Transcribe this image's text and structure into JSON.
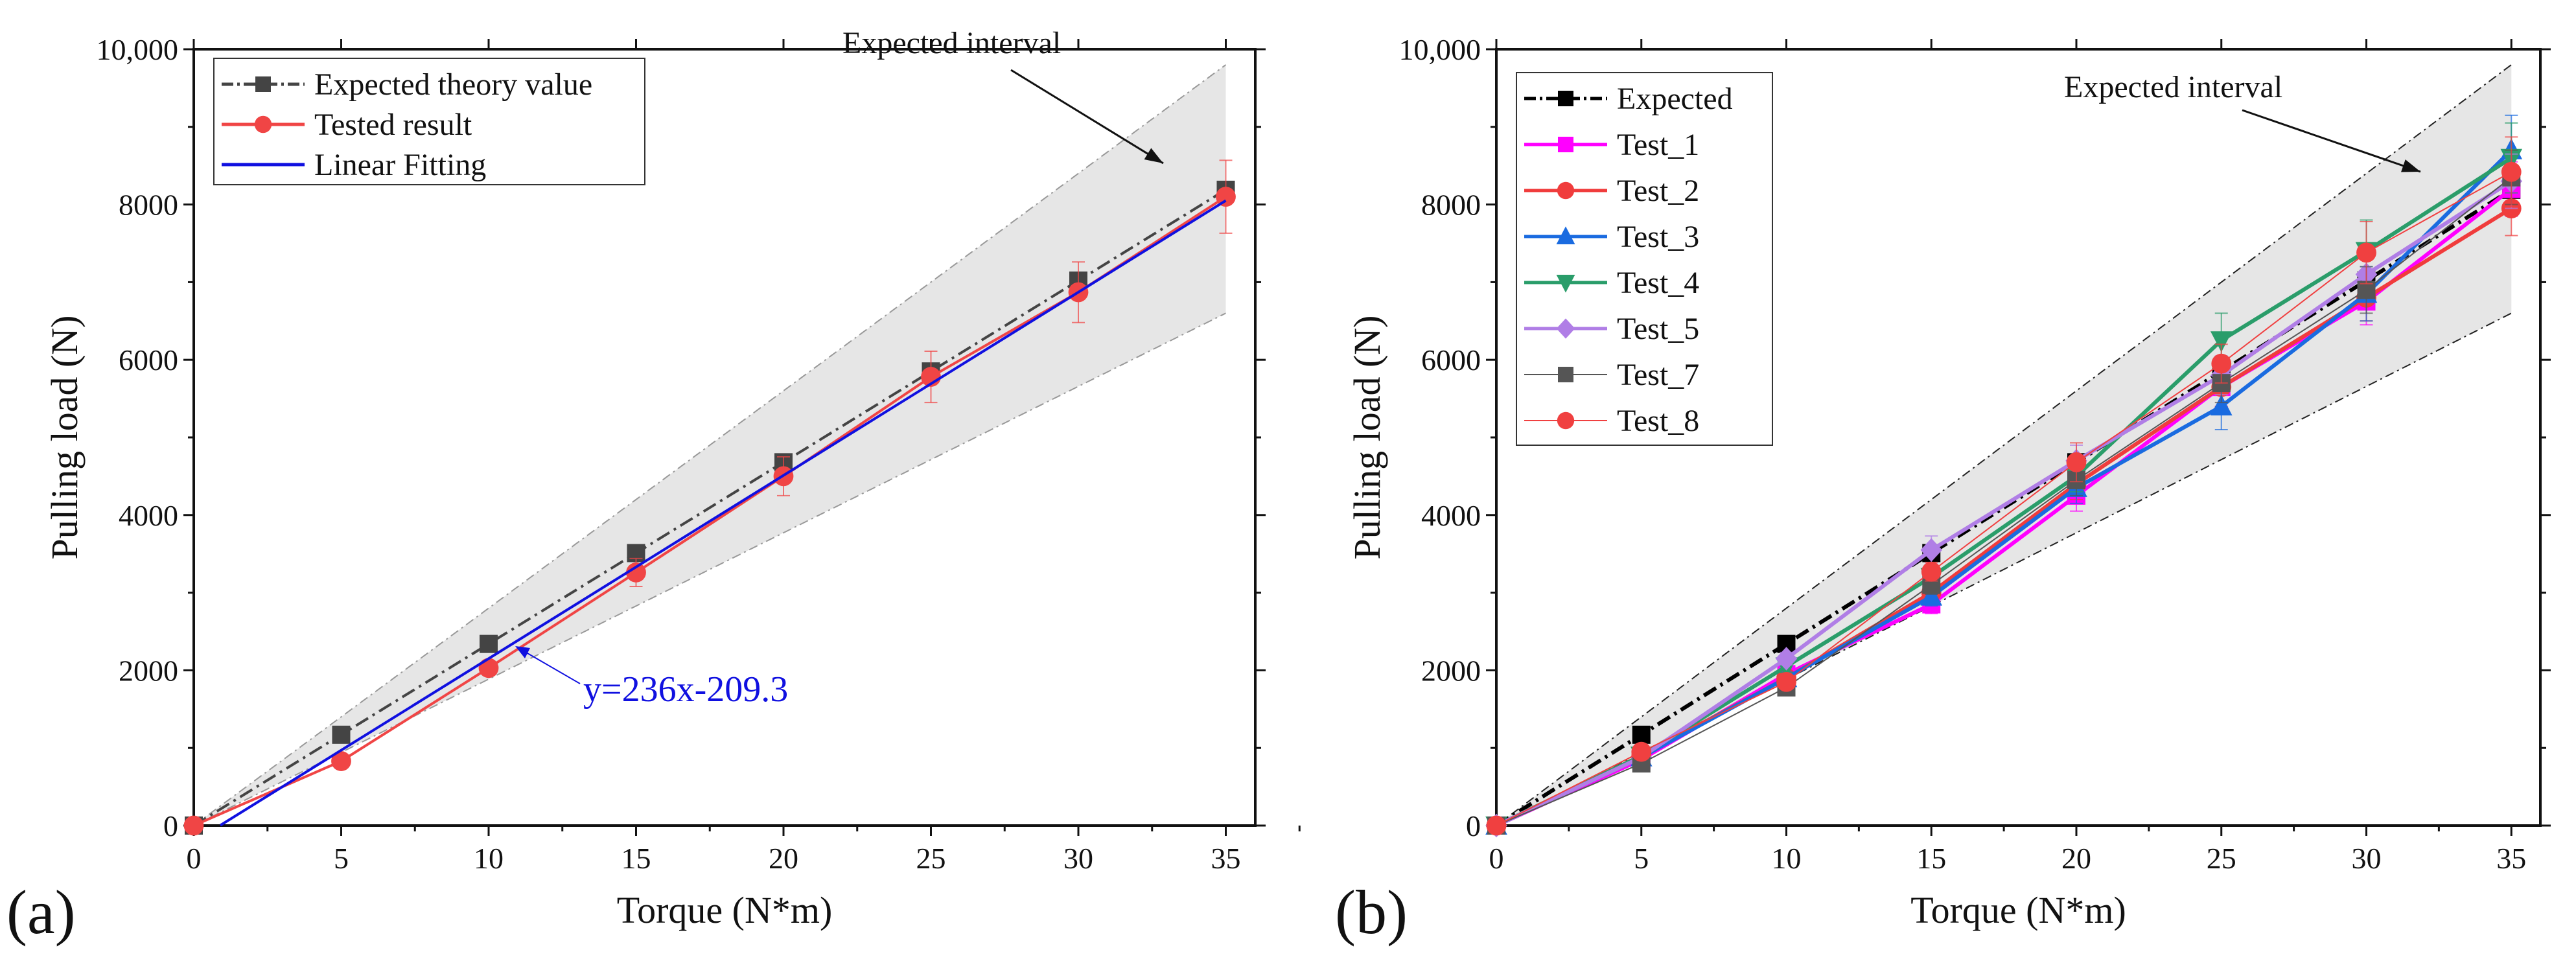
{
  "chart_data": [
    {
      "type": "line",
      "panel_label": "(a)",
      "xlabel": "Torque (N*m)",
      "ylabel": "Pulling load (N)",
      "xlim": [
        0,
        36
      ],
      "ylim": [
        0,
        10000
      ],
      "xticks": [
        "0",
        "5",
        "10",
        "15",
        "20",
        "25",
        "30",
        "35"
      ],
      "yticks": [
        "0",
        "2000",
        "4000",
        "6000",
        "8000",
        "10,000"
      ],
      "x": [
        0,
        5,
        10,
        15,
        20,
        25,
        30,
        35
      ],
      "interval": {
        "label": "Expected  interval",
        "upper_at_35": 9800,
        "lower_at_35": 6600
      },
      "series": [
        {
          "name": "Expected theory value",
          "color": "#444444",
          "style": "dashdot",
          "marker": "square",
          "values": [
            0,
            1170,
            2340,
            3510,
            4680,
            5850,
            7020,
            8190
          ]
        },
        {
          "name": "Tested result",
          "color": "#f04545",
          "style": "solid",
          "marker": "circle",
          "values": [
            0,
            830,
            2030,
            3260,
            4500,
            5780,
            6870,
            8100
          ],
          "errors": [
            0,
            0,
            0,
            180,
            250,
            330,
            390,
            470
          ]
        },
        {
          "name": "Linear Fitting",
          "color": "#1010e0",
          "style": "solid",
          "marker": "none",
          "fit": {
            "slope": 236,
            "intercept": -209.3,
            "x_range": [
              0.9,
              35
            ]
          }
        }
      ],
      "annotation": "y=236x-209.3",
      "legend_position": "top-left"
    },
    {
      "type": "line",
      "panel_label": "(b)",
      "xlabel": "Torque (N*m)",
      "ylabel": "Pulling load (N)",
      "xlim": [
        0,
        36
      ],
      "ylim": [
        0,
        10000
      ],
      "xticks": [
        "0",
        "5",
        "10",
        "15",
        "20",
        "25",
        "30",
        "35"
      ],
      "yticks": [
        "0",
        "2000",
        "4000",
        "6000",
        "8000",
        "10,000"
      ],
      "x": [
        0,
        5,
        10,
        15,
        20,
        25,
        30,
        35
      ],
      "interval": {
        "label": "Expected interval",
        "upper_at_35": 9800,
        "lower_at_35": 6600
      },
      "series": [
        {
          "name": "Expected",
          "color": "#000000",
          "style": "dashdot",
          "marker": "square",
          "values": [
            0,
            1170,
            2340,
            3510,
            4680,
            5850,
            7020,
            8190
          ]
        },
        {
          "name": "Test_1",
          "color": "#ff00ff",
          "style": "solid",
          "marker": "square",
          "values": [
            0,
            850,
            1950,
            2850,
            4250,
            5650,
            6750,
            8200
          ],
          "errors": [
            0,
            60,
            80,
            120,
            200,
            250,
            300,
            350
          ]
        },
        {
          "name": "Test_2",
          "color": "#f03c3c",
          "style": "solid",
          "marker": "circle",
          "values": [
            0,
            900,
            1900,
            3000,
            4400,
            5650,
            6800,
            7950
          ],
          "errors": [
            0,
            60,
            80,
            120,
            200,
            250,
            300,
            350
          ]
        },
        {
          "name": "Test_3",
          "color": "#1a6be0",
          "style": "solid",
          "marker": "triangle-up",
          "values": [
            0,
            880,
            1900,
            2950,
            4350,
            5400,
            6850,
            8700
          ],
          "errors": [
            0,
            60,
            80,
            120,
            200,
            300,
            350,
            450
          ]
        },
        {
          "name": "Test_4",
          "color": "#2a9d6a",
          "style": "solid",
          "marker": "triangle-down",
          "values": [
            0,
            900,
            2050,
            3200,
            4500,
            6250,
            7400,
            8600
          ],
          "errors": [
            0,
            60,
            80,
            120,
            200,
            350,
            400,
            450
          ]
        },
        {
          "name": "Test_5",
          "color": "#b07ee6",
          "style": "solid",
          "marker": "diamond",
          "values": [
            0,
            880,
            2150,
            3550,
            4700,
            5800,
            7100,
            8300
          ],
          "errors": [
            0,
            60,
            80,
            180,
            200,
            250,
            300,
            350
          ]
        },
        {
          "name": "Test_7",
          "color": "#555555",
          "style": "thin",
          "marker": "square",
          "values": [
            0,
            800,
            1780,
            3100,
            4450,
            5700,
            6900,
            8350
          ],
          "errors": [
            0,
            60,
            80,
            120,
            200,
            250,
            300,
            350
          ]
        },
        {
          "name": "Test_8",
          "color": "#f04040",
          "style": "thin",
          "marker": "circle",
          "values": [
            0,
            950,
            1850,
            3270,
            4680,
            5950,
            7380,
            8420
          ],
          "errors": [
            0,
            60,
            80,
            120,
            250,
            250,
            400,
            450
          ]
        }
      ],
      "legend_position": "top-left"
    }
  ]
}
